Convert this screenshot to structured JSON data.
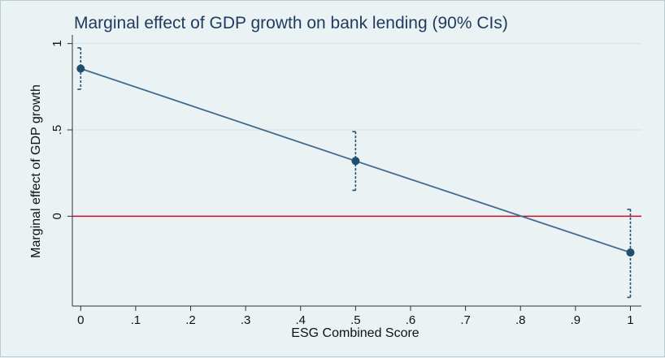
{
  "chart_data": {
    "type": "line",
    "title": "Marginal effect of GDP growth on bank lending (90% CIs)",
    "xlabel": "ESG Combined Score",
    "ylabel": "Marginal effect of GDP growth",
    "x_ticks": [
      "0",
      ".1",
      ".2",
      ".3",
      ".4",
      ".5",
      ".6",
      ".7",
      ".8",
      ".9",
      "1"
    ],
    "x_tick_values": [
      0,
      0.1,
      0.2,
      0.3,
      0.4,
      0.5,
      0.6,
      0.7,
      0.8,
      0.9,
      1
    ],
    "y_ticks": [
      "0",
      ".5",
      "1"
    ],
    "y_tick_values": [
      0,
      0.5,
      1
    ],
    "xlim": [
      -0.03,
      1.02
    ],
    "ylim": [
      -0.52,
      1.05
    ],
    "grid": true,
    "reference_line": {
      "y": 0,
      "color": "#c8102e"
    },
    "series": [
      {
        "x": [
          0,
          0.5,
          1
        ],
        "y": [
          0.855,
          0.32,
          -0.21
        ],
        "ci_low": [
          0.735,
          0.15,
          -0.47
        ],
        "ci_high": [
          0.975,
          0.49,
          0.04
        ],
        "color": "#3d6a8f",
        "marker_color": "#1f4e6e"
      }
    ],
    "background": "#eaf2f3"
  }
}
